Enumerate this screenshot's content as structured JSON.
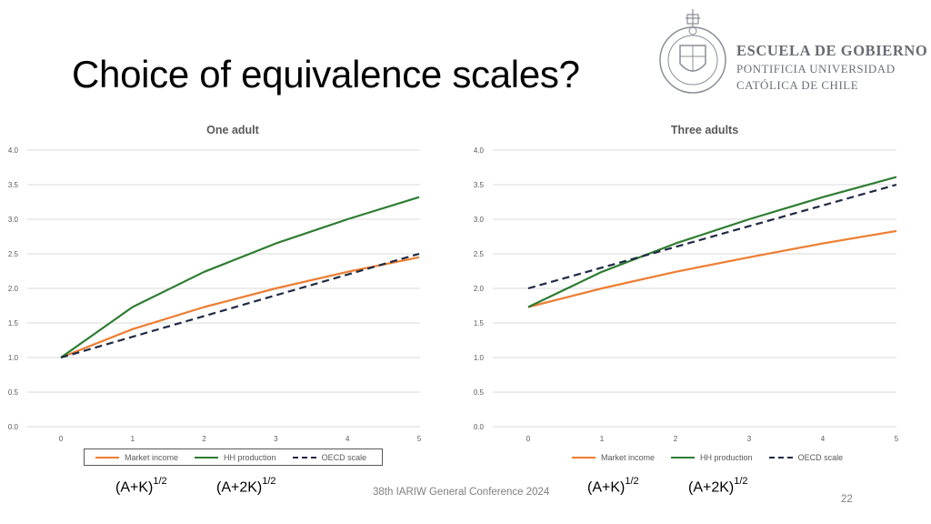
{
  "slide": {
    "title": "Choice of equivalence scales?",
    "footer": "38th IARIW General Conference 2024",
    "page_number": "22",
    "formulas": {
      "left_1": {
        "base": "(A+K)",
        "exp": "1/2"
      },
      "left_2": {
        "base": "(A+2K)",
        "exp": "1/2"
      },
      "right_1": {
        "base": "(A+K)",
        "exp": "1/2"
      },
      "right_2": {
        "base": "(A+2K)",
        "exp": "1/2"
      }
    }
  },
  "logo": {
    "line1": "ESCUELA DE GOBIERNO",
    "line2": "PONTIFICIA UNIVERSIDAD",
    "line3": "CATÓLICA DE CHILE"
  },
  "colors": {
    "market_income": "#ED7D31",
    "hh_production": "#2E7D32",
    "oecd_scale": "#1F2A44",
    "grid": "#D9D9D9",
    "tick_text": "#595959"
  },
  "chart_data": [
    {
      "type": "line",
      "title": "One adult",
      "x": [
        0,
        1,
        2,
        3,
        4,
        5
      ],
      "ylim": [
        0,
        4.0
      ],
      "yticks": [
        "0.0",
        "0.5",
        "1.0",
        "1.5",
        "2.0",
        "2.5",
        "3.0",
        "3.5",
        "4.0"
      ],
      "xticks": [
        "0",
        "1",
        "2",
        "3",
        "4",
        "5"
      ],
      "grid": true,
      "legend_position": "bottom",
      "series": [
        {
          "name": "Market income",
          "values": [
            1.0,
            1.41,
            1.73,
            2.0,
            2.24,
            2.45
          ],
          "style": "solid",
          "color_key": "market_income"
        },
        {
          "name": "HH production",
          "values": [
            1.0,
            1.73,
            2.24,
            2.65,
            3.0,
            3.32
          ],
          "style": "solid",
          "color_key": "hh_production"
        },
        {
          "name": "OECD scale",
          "values": [
            1.0,
            1.3,
            1.6,
            1.9,
            2.2,
            2.5
          ],
          "style": "dashed",
          "color_key": "oecd_scale"
        }
      ]
    },
    {
      "type": "line",
      "title": "Three adults",
      "x": [
        0,
        1,
        2,
        3,
        4,
        5
      ],
      "ylim": [
        0,
        4.0
      ],
      "yticks": [
        "0.0",
        "0.5",
        "1.0",
        "1.5",
        "2.0",
        "2.5",
        "3.0",
        "3.5",
        "4.0"
      ],
      "xticks": [
        "0",
        "1",
        "2",
        "3",
        "4",
        "5"
      ],
      "grid": true,
      "legend_position": "bottom",
      "series": [
        {
          "name": "Market income",
          "values": [
            1.73,
            2.0,
            2.24,
            2.45,
            2.65,
            2.83
          ],
          "style": "solid",
          "color_key": "market_income"
        },
        {
          "name": "HH production",
          "values": [
            1.73,
            2.24,
            2.65,
            3.0,
            3.32,
            3.61
          ],
          "style": "solid",
          "color_key": "hh_production"
        },
        {
          "name": "OECD scale",
          "values": [
            2.0,
            2.3,
            2.6,
            2.9,
            3.2,
            3.5
          ],
          "style": "dashed",
          "color_key": "oecd_scale"
        }
      ]
    }
  ]
}
